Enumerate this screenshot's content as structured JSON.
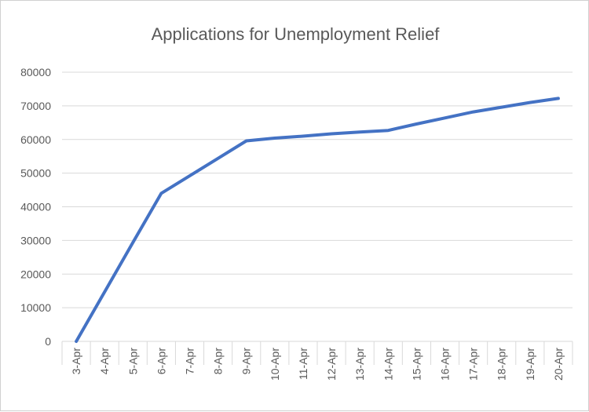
{
  "chart_data": {
    "type": "line",
    "title": "Applications for Unemployment Relief",
    "xlabel": "",
    "ylabel": "",
    "categories": [
      "3-Apr",
      "4-Apr",
      "5-Apr",
      "6-Apr",
      "7-Apr",
      "8-Apr",
      "9-Apr",
      "10-Apr",
      "11-Apr",
      "12-Apr",
      "13-Apr",
      "14-Apr",
      "15-Apr",
      "16-Apr",
      "17-Apr",
      "18-Apr",
      "19-Apr",
      "20-Apr"
    ],
    "series": [
      {
        "values": [
          0,
          14700,
          29400,
          44000,
          49200,
          54400,
          59600,
          60400,
          61000,
          61700,
          62200,
          62700,
          64600,
          66400,
          68200,
          69600,
          71000,
          72200
        ]
      }
    ],
    "ylim": [
      0,
      80000
    ],
    "yticks": [
      "0",
      "10000",
      "20000",
      "30000",
      "40000",
      "50000",
      "60000",
      "70000",
      "80000"
    ],
    "grid": true,
    "legend": "none",
    "colors": {
      "line": "#4472c4",
      "grid": "#d9d9d9",
      "text": "#595959"
    }
  }
}
